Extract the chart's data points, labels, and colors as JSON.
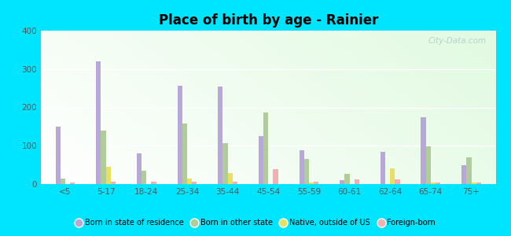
{
  "title": "Place of birth by age - Rainier",
  "categories": [
    "<5",
    "5-17",
    "18-24",
    "25-34",
    "35-44",
    "45-54",
    "55-59",
    "60-61",
    "62-64",
    "65-74",
    "75+"
  ],
  "series": {
    "Born in state of residence": [
      150,
      320,
      80,
      257,
      255,
      125,
      88,
      10,
      85,
      175,
      50
    ],
    "Born in other state": [
      15,
      140,
      35,
      158,
      107,
      187,
      65,
      27,
      0,
      98,
      70
    ],
    "Native, outside of US": [
      0,
      45,
      0,
      15,
      28,
      0,
      5,
      0,
      42,
      5,
      5
    ],
    "Foreign-born": [
      5,
      7,
      7,
      7,
      7,
      40,
      7,
      13,
      13,
      5,
      5
    ]
  },
  "colors": {
    "Born in state of residence": "#b8a8d8",
    "Born in other state": "#b0cc98",
    "Native, outside of US": "#e8e060",
    "Foreign-born": "#f0b0b0"
  },
  "ylim": [
    0,
    400
  ],
  "yticks": [
    0,
    100,
    200,
    300,
    400
  ],
  "figure_background": "#00e5ff",
  "bar_width": 0.12,
  "watermark": "City-Data.com"
}
